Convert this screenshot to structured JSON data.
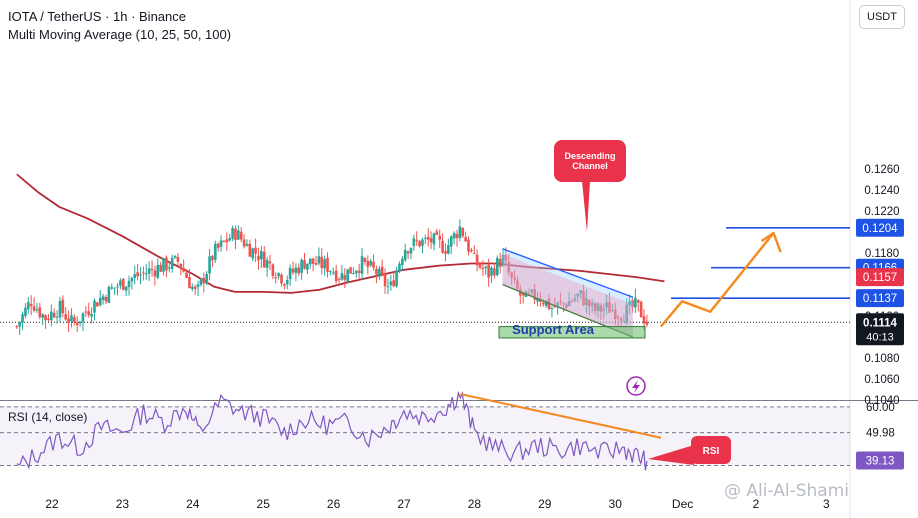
{
  "header": {
    "title": "IOTA / TetherUS · 1h · Binance",
    "indicator": "Multi Moving Average (10, 25, 50, 100)"
  },
  "currency_button": "USDT",
  "rsi": {
    "label": "RSI (14, close)",
    "levels": [
      "60.00",
      "49.98",
      "37.21"
    ],
    "current": "39.13",
    "callout": "RSI"
  },
  "annotations": {
    "channel_callout": [
      "Descending",
      "Channel"
    ],
    "support_label": "Support Area"
  },
  "price_badges": {
    "current_price": "0.1114",
    "countdown": "40:13"
  },
  "watermark": "@ Ali-Al-Shami",
  "colors": {
    "up": "#26a69a",
    "down": "#ef5350",
    "ma": "#b22833",
    "channel_fill": "#90caf9",
    "callout_red": "#e8334a",
    "projection": "#f4891f",
    "level_line": "#1e53e5",
    "rsi_line": "#7e57c2"
  },
  "chart_data": [
    {
      "type": "candlestick",
      "title": "IOTA / TetherUS · 1h · Binance",
      "x_ticks": [
        "22",
        "23",
        "24",
        "25",
        "26",
        "27",
        "28",
        "29",
        "30",
        "Dec",
        "2",
        "3"
      ],
      "y_ticks": [
        "0.1040",
        "0.1060",
        "0.1080",
        "0.1100",
        "0.1120",
        "0.1140",
        "0.1160",
        "0.1180",
        "0.1200",
        "0.1220",
        "0.1240",
        "0.1260"
      ],
      "ylim": [
        0.104,
        0.1285
      ],
      "grid": false,
      "horizontal_levels": [
        {
          "price": 0.1204,
          "label": "0.1204",
          "color": "#1e53e5"
        },
        {
          "price": 0.1166,
          "label": "0.1166",
          "color": "#1e53e5"
        },
        {
          "price": 0.1137,
          "label": "0.1137",
          "color": "#1e53e5"
        }
      ],
      "moving_average_label": "0.1157",
      "current_price": 0.1114,
      "close_path": [
        [
          21.5,
          0.111
        ],
        [
          21.7,
          0.1135
        ],
        [
          21.9,
          0.1118
        ],
        [
          22.1,
          0.1128
        ],
        [
          22.3,
          0.1112
        ],
        [
          22.6,
          0.1132
        ],
        [
          22.9,
          0.1148
        ],
        [
          23.2,
          0.1158
        ],
        [
          23.5,
          0.1166
        ],
        [
          23.8,
          0.1172
        ],
        [
          24.05,
          0.114
        ],
        [
          24.3,
          0.118
        ],
        [
          24.6,
          0.12
        ],
        [
          24.8,
          0.1185
        ],
        [
          25.0,
          0.1175
        ],
        [
          25.3,
          0.1155
        ],
        [
          25.6,
          0.1172
        ],
        [
          25.9,
          0.1168
        ],
        [
          26.1,
          0.1158
        ],
        [
          26.4,
          0.117
        ],
        [
          26.6,
          0.1162
        ],
        [
          26.8,
          0.1145
        ],
        [
          27.0,
          0.1185
        ],
        [
          27.2,
          0.119
        ],
        [
          27.4,
          0.1192
        ],
        [
          27.6,
          0.1185
        ],
        [
          27.8,
          0.1205
        ],
        [
          28.0,
          0.1172
        ],
        [
          28.2,
          0.116
        ],
        [
          28.4,
          0.1175
        ],
        [
          28.55,
          0.115
        ],
        [
          28.7,
          0.1135
        ],
        [
          28.9,
          0.114
        ],
        [
          29.1,
          0.1128
        ],
        [
          29.3,
          0.1132
        ],
        [
          29.5,
          0.114
        ],
        [
          29.7,
          0.1125
        ],
        [
          29.9,
          0.1128
        ],
        [
          30.1,
          0.1122
        ],
        [
          30.3,
          0.113
        ],
        [
          30.45,
          0.1114
        ]
      ],
      "moving_average": [
        [
          21.5,
          0.1255
        ],
        [
          21.8,
          0.1238
        ],
        [
          22.1,
          0.1224
        ],
        [
          22.5,
          0.1213
        ],
        [
          23.0,
          0.1196
        ],
        [
          23.5,
          0.1177
        ],
        [
          24.0,
          0.116
        ],
        [
          24.3,
          0.1148
        ],
        [
          24.6,
          0.1143
        ],
        [
          25.0,
          0.1143
        ],
        [
          25.4,
          0.1142
        ],
        [
          25.8,
          0.1145
        ],
        [
          26.2,
          0.1152
        ],
        [
          26.6,
          0.1158
        ],
        [
          27.0,
          0.1164
        ],
        [
          27.5,
          0.1168
        ],
        [
          27.95,
          0.117
        ],
        [
          28.3,
          0.117
        ],
        [
          28.7,
          0.1167
        ],
        [
          29.1,
          0.1165
        ],
        [
          29.5,
          0.1163
        ],
        [
          29.9,
          0.116
        ],
        [
          30.3,
          0.1157
        ],
        [
          30.7,
          0.1153
        ]
      ],
      "descending_channel": {
        "upper": [
          [
            28.4,
            0.1184
          ],
          [
            30.25,
            0.1138
          ]
        ],
        "lower": [
          [
            28.4,
            0.115
          ],
          [
            30.25,
            0.11
          ]
        ]
      },
      "support_area": [
        0.1101,
        0.1108
      ],
      "projection": [
        [
          30.65,
          0.111
        ],
        [
          30.95,
          0.1134
        ],
        [
          31.35,
          0.1124
        ],
        [
          32.25,
          0.1199
        ]
      ]
    },
    {
      "type": "line",
      "title": "RSI (14, close)",
      "y_ticks": [
        "60.00",
        "49.98",
        "37.21"
      ],
      "ylim": [
        30,
        72
      ],
      "levels": [
        60.0,
        49.98,
        37.21
      ],
      "current": 39.13,
      "trendline": [
        [
          27.8,
          65
        ],
        [
          30.65,
          48
        ]
      ],
      "values": [
        [
          21.5,
          36
        ],
        [
          21.8,
          42
        ],
        [
          22.1,
          48
        ],
        [
          22.4,
          44
        ],
        [
          22.7,
          52
        ],
        [
          23.0,
          50
        ],
        [
          23.3,
          58
        ],
        [
          23.6,
          54
        ],
        [
          23.9,
          60
        ],
        [
          24.1,
          50
        ],
        [
          24.4,
          62
        ],
        [
          24.7,
          58
        ],
        [
          25.0,
          56
        ],
        [
          25.3,
          50
        ],
        [
          25.6,
          55
        ],
        [
          25.9,
          53
        ],
        [
          26.2,
          54
        ],
        [
          26.5,
          48
        ],
        [
          26.8,
          53
        ],
        [
          27.0,
          58
        ],
        [
          27.3,
          56
        ],
        [
          27.6,
          60
        ],
        [
          27.8,
          65
        ],
        [
          28.0,
          50
        ],
        [
          28.3,
          44
        ],
        [
          28.6,
          42
        ],
        [
          28.9,
          45
        ],
        [
          29.2,
          43
        ],
        [
          29.5,
          45
        ],
        [
          29.8,
          42
        ],
        [
          30.1,
          44
        ],
        [
          30.3,
          41
        ],
        [
          30.45,
          39
        ]
      ]
    }
  ]
}
